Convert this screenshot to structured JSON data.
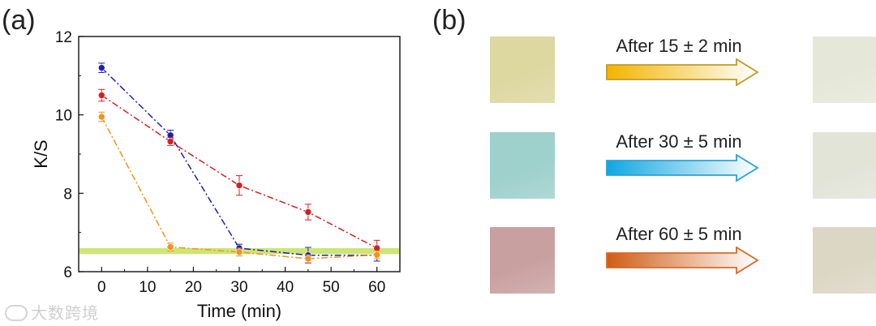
{
  "panels": {
    "a": "(a)",
    "b": "(b)"
  },
  "chart_data": {
    "type": "line",
    "xlabel": "Time (min)",
    "ylabel": "K/S",
    "xlim": [
      -5,
      65
    ],
    "ylim": [
      6,
      12
    ],
    "xticks": [
      0,
      10,
      20,
      30,
      40,
      50,
      60
    ],
    "yticks": [
      6,
      8,
      10,
      12
    ],
    "reference_band": {
      "y_from": 6.45,
      "y_to": 6.6,
      "color": "#c6e05a"
    },
    "series": [
      {
        "name": "blue",
        "color": "#1f1fb4",
        "x": [
          0,
          15,
          30,
          45,
          60
        ],
        "values": [
          11.2,
          9.48,
          6.6,
          6.42,
          6.42
        ],
        "errors": [
          0.12,
          0.13,
          0.1,
          0.2,
          0.15
        ]
      },
      {
        "name": "red",
        "color": "#d42020",
        "x": [
          0,
          15,
          30,
          45,
          60
        ],
        "values": [
          10.5,
          9.32,
          8.2,
          7.52,
          6.6
        ],
        "errors": [
          0.15,
          0.1,
          0.25,
          0.2,
          0.2
        ]
      },
      {
        "name": "orange",
        "color": "#f0921e",
        "x": [
          0,
          15,
          30,
          45,
          60
        ],
        "values": [
          9.95,
          6.63,
          6.5,
          6.33,
          6.43
        ],
        "errors": [
          0.12,
          0.1,
          0.1,
          0.1,
          0.1
        ]
      }
    ]
  },
  "panel_b": {
    "rows": [
      {
        "label": "After 15 ± 2 min",
        "before_color": "#ddd7a0",
        "after_color": "#e5e8d8",
        "arrow_from": "#f3b400",
        "arrow_stroke": "#c19a2a"
      },
      {
        "label": "After 30 ± 5 min",
        "before_color": "#9ed0cc",
        "after_color": "#e2e4d8",
        "arrow_from": "#10a6e2",
        "arrow_stroke": "#2aa3d6"
      },
      {
        "label": "After 60 ± 5 min",
        "before_color": "#c9a0a0",
        "after_color": "#dcd6c4",
        "arrow_from": "#d05c14",
        "arrow_stroke": "#d56b2a"
      }
    ]
  },
  "watermark": "大数跨境"
}
